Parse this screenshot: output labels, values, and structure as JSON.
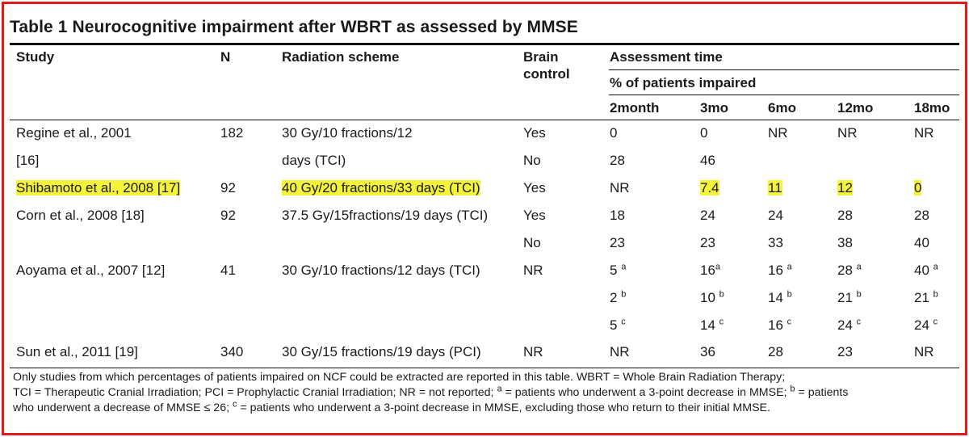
{
  "title": "Table 1 Neurocognitive impairment after WBRT as assessed by MMSE",
  "headers": {
    "study": "Study",
    "n": "N",
    "scheme": "Radiation scheme",
    "brain1": "Brain",
    "brain2": "control",
    "assessment": "Assessment time",
    "impaired": "% of patients impaired",
    "t1": "2month",
    "t2": "3mo",
    "t3": "6mo",
    "t4": "12mo",
    "t5": "18mo"
  },
  "rows": [
    {
      "study": "Regine et al., 2001",
      "n": "182",
      "scheme": "30 Gy/10 fractions/12",
      "control": "Yes",
      "v": [
        "0",
        "0",
        "NR",
        "NR",
        "NR"
      ]
    },
    {
      "study": "[16]",
      "n": "",
      "scheme": "days (TCI)",
      "control": "No",
      "v": [
        "28",
        "46",
        "",
        "",
        ""
      ]
    },
    {
      "study": "Shibamoto et al., 2008 [17]",
      "n": "92",
      "scheme": "40 Gy/20 fractions/33 days (TCI)",
      "control": "Yes",
      "v": [
        "NR",
        "7.4",
        "11",
        "12",
        "0"
      ]
    },
    {
      "study": "Corn et al., 2008 [18]",
      "n": "92",
      "scheme": "37.5 Gy/15fractions/19 days (TCI)",
      "control": "Yes",
      "v": [
        "18",
        "24",
        "24",
        "28",
        "28"
      ]
    },
    {
      "study": "",
      "n": "",
      "scheme": "",
      "control": "No",
      "v": [
        "23",
        "23",
        "33",
        "38",
        "40"
      ]
    },
    {
      "study": "Aoyama et al., 2007 [12]",
      "n": "41",
      "scheme": "30 Gy/10 fractions/12 days (TCI)",
      "control": "NR",
      "v": [
        "5",
        "16",
        "16",
        "28",
        "40"
      ]
    },
    {
      "study": "",
      "n": "",
      "scheme": "",
      "control": "",
      "v": [
        "2",
        "10",
        "14",
        "21",
        "21"
      ]
    },
    {
      "study": "",
      "n": "",
      "scheme": "",
      "control": "",
      "v": [
        "5",
        "14",
        "16",
        "24",
        "24"
      ]
    },
    {
      "study": "Sun et al., 2011 [19]",
      "n": "340",
      "scheme": "30 Gy/15 fractions/19 days (PCI)",
      "control": "NR",
      "v": [
        "NR",
        "36",
        "28",
        "23",
        "NR"
      ]
    }
  ],
  "sup": {
    "a": "a",
    "b": "b",
    "c": "c"
  },
  "footnote": {
    "l1": "Only studies from which percentages of patients impaired on NCF could be extracted are reported in this table. WBRT = Whole Brain Radiation Therapy;",
    "l2a": "TCI = Therapeutic Cranial Irradiation; PCI = Prophylactic Cranial Irradiation; NR = not reported; ",
    "l2b": " = patients who underwent a 3-point decrease in MMSE; ",
    "l2c": " = patients",
    "l3a": "who underwent a decrease of MMSE ≤ 26; ",
    "l3b": " = patients who underwent a 3-point decrease in MMSE, excluding those who return to their initial MMSE."
  }
}
